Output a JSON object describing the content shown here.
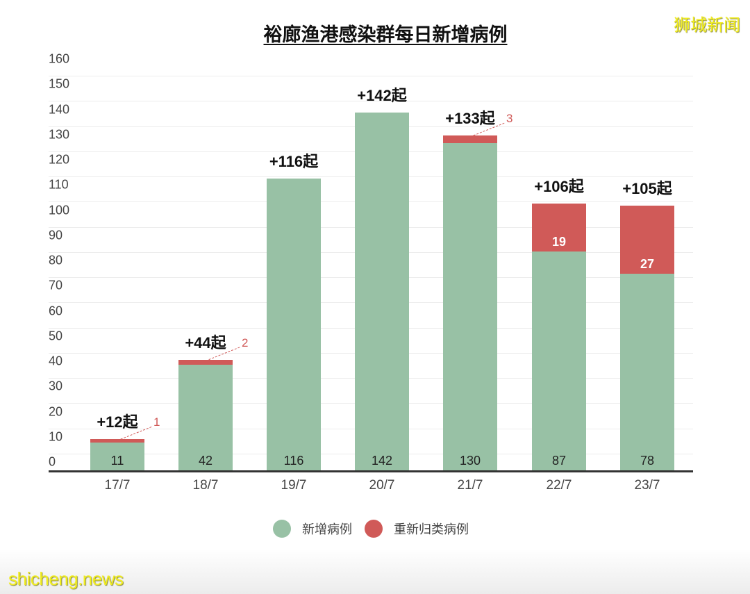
{
  "title": "裕廊渔港感染群每日新增病例",
  "watermarks": {
    "top_right": "狮城新闻",
    "bottom_left": "shicheng.news"
  },
  "legend": [
    {
      "label": "新增病例",
      "color": "#98c1a5"
    },
    {
      "label": "重新归类病例",
      "color": "#d05a58"
    }
  ],
  "yaxis": {
    "ticks": [
      "160",
      "150",
      "140",
      "130",
      "120",
      "110",
      "100",
      "90",
      "80",
      "70",
      "60",
      "50",
      "40",
      "30",
      "20",
      "10",
      "0"
    ]
  },
  "bars": [
    {
      "date": "17/7",
      "new": "11",
      "reclass": "1",
      "total": "+12起"
    },
    {
      "date": "18/7",
      "new": "42",
      "reclass": "2",
      "total": "+44起"
    },
    {
      "date": "19/7",
      "new": "116",
      "reclass": "",
      "total": "+116起"
    },
    {
      "date": "20/7",
      "new": "142",
      "reclass": "",
      "total": "+142起"
    },
    {
      "date": "21/7",
      "new": "130",
      "reclass": "3",
      "total": "+133起"
    },
    {
      "date": "22/7",
      "new": "87",
      "reclass": "19",
      "total": "+106起"
    },
    {
      "date": "23/7",
      "new": "78",
      "reclass": "27",
      "total": "+105起"
    }
  ],
  "chart_data": {
    "type": "bar",
    "stacked": true,
    "title": "裕廊渔港感染群每日新增病例",
    "xlabel": "",
    "ylabel": "",
    "ylim": [
      0,
      160
    ],
    "yticks": [
      0,
      10,
      20,
      30,
      40,
      50,
      60,
      70,
      80,
      90,
      100,
      110,
      120,
      130,
      140,
      150,
      160
    ],
    "grid": true,
    "legend_position": "bottom",
    "categories": [
      "17/7",
      "18/7",
      "19/7",
      "20/7",
      "21/7",
      "22/7",
      "23/7"
    ],
    "series": [
      {
        "name": "新增病例",
        "color": "#98c1a5",
        "values": [
          11,
          42,
          116,
          142,
          130,
          87,
          78
        ]
      },
      {
        "name": "重新归类病例",
        "color": "#d05a58",
        "values": [
          1,
          2,
          0,
          0,
          3,
          19,
          27
        ]
      }
    ],
    "annotations": [
      "+12起",
      "+44起",
      "+116起",
      "+142起",
      "+133起",
      "+106起",
      "+105起"
    ],
    "totals": [
      12,
      44,
      116,
      142,
      133,
      106,
      105
    ]
  }
}
